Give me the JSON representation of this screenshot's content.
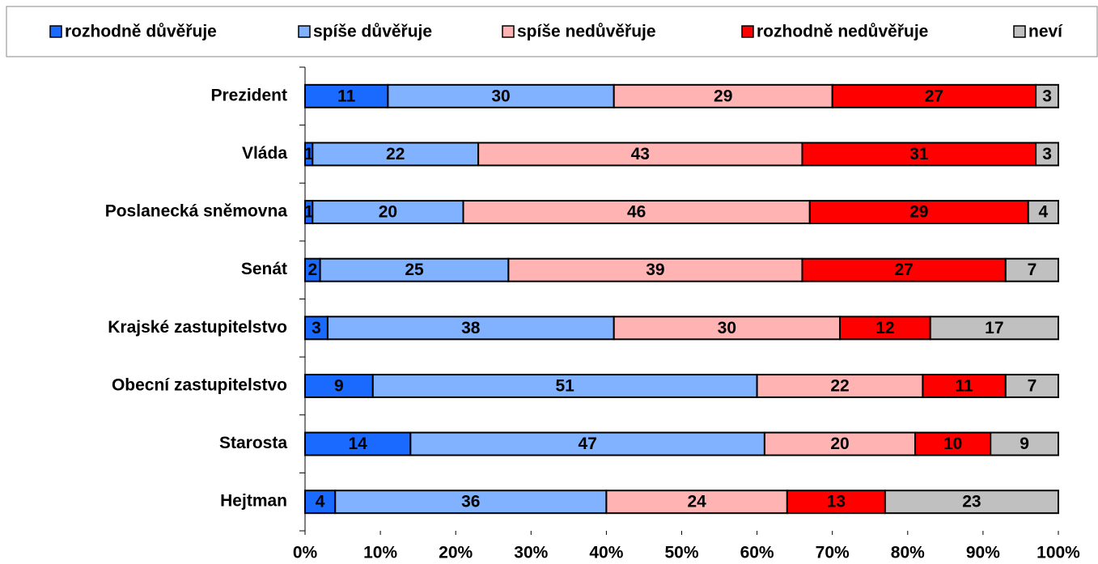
{
  "chart_data": {
    "type": "stacked-bar-horizontal",
    "categories": [
      "Prezident",
      "Vláda",
      "Poslanecká sněmovna",
      "Senát",
      "Krajské zastupitelstvo",
      "Obecní zastupitelstvo",
      "Starosta",
      "Hejtman"
    ],
    "series": [
      {
        "name": "rozhodně důvěřuje",
        "color": "#1a6aff",
        "values": [
          11,
          1,
          1,
          2,
          3,
          9,
          14,
          4
        ]
      },
      {
        "name": "spíše důvěřuje",
        "color": "#80b2ff",
        "values": [
          30,
          22,
          20,
          25,
          38,
          51,
          47,
          36
        ]
      },
      {
        "name": "spíše nedůvěřuje",
        "color": "#ffb3b3",
        "values": [
          29,
          43,
          46,
          39,
          30,
          22,
          20,
          24
        ]
      },
      {
        "name": "rozhodně nedůvěřuje",
        "color": "#ff0000",
        "values": [
          27,
          31,
          29,
          27,
          12,
          11,
          10,
          13
        ]
      },
      {
        "name": "neví",
        "color": "#c0c0c0",
        "values": [
          3,
          3,
          4,
          7,
          17,
          7,
          9,
          23
        ]
      }
    ],
    "xlim": [
      0,
      100
    ],
    "xticks": [
      {
        "value": 0,
        "label": "0%"
      },
      {
        "value": 10,
        "label": "10%"
      },
      {
        "value": 20,
        "label": "20%"
      },
      {
        "value": 30,
        "label": "30%"
      },
      {
        "value": 40,
        "label": "40%"
      },
      {
        "value": 50,
        "label": "50%"
      },
      {
        "value": 60,
        "label": "60%"
      },
      {
        "value": 70,
        "label": "70%"
      },
      {
        "value": 80,
        "label": "80%"
      },
      {
        "value": 90,
        "label": "90%"
      },
      {
        "value": 100,
        "label": "100%"
      }
    ],
    "legend": "top",
    "grid": false
  }
}
